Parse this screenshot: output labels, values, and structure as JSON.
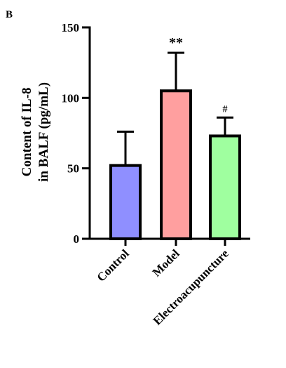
{
  "chart_data": {
    "type": "bar",
    "panel_label": "B",
    "ylabel_lines": [
      "Content of IL-8",
      "in BALF (pg/mL)"
    ],
    "ylim": [
      0,
      150
    ],
    "yticks": [
      0,
      50,
      100,
      150
    ],
    "grid": false,
    "categories": [
      "Control",
      "Model",
      "Electroacupuncture"
    ],
    "values": [
      52,
      105,
      73
    ],
    "errors": [
      24,
      27,
      13
    ],
    "annotations": [
      "",
      "**",
      "#"
    ],
    "colors": [
      "#8f8fff",
      "#ff9f9f",
      "#9fff9f"
    ],
    "edge_color": "#000000"
  }
}
